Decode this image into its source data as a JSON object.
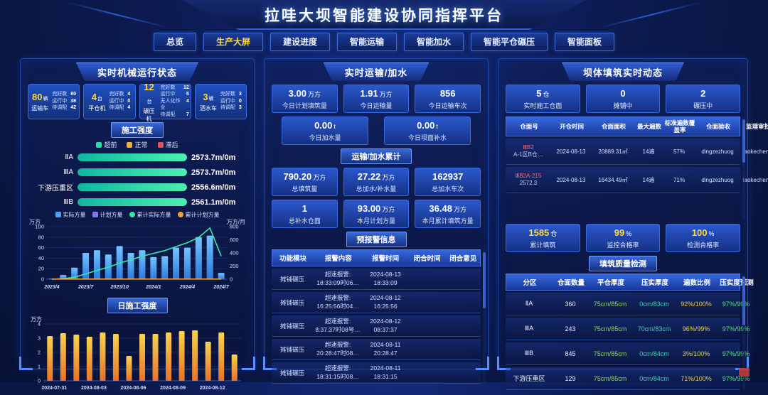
{
  "header": {
    "title": "拉哇大坝智能建设协同指挥平台"
  },
  "nav": {
    "tabs": [
      {
        "label": "总览",
        "active": false
      },
      {
        "label": "生产大屏",
        "active": true
      },
      {
        "label": "建设进度",
        "active": false
      },
      {
        "label": "智能运输",
        "active": false
      },
      {
        "label": "智能加水",
        "active": false
      },
      {
        "label": "智能平仓碾压",
        "active": false
      },
      {
        "label": "智能面板",
        "active": false
      }
    ]
  },
  "colors": {
    "accent_yellow": "#ffd93d",
    "ahead_teal": "#2fd9a8",
    "normal_yellow": "#e8b339",
    "late_red": "#e05555",
    "bar_blue": "#4aa3f0",
    "plan_purple": "#8277f0",
    "cum_green": "#35e8a6",
    "cum_orange": "#f0a23c",
    "alarm_red": "#ff6b6b"
  },
  "left_panel": {
    "title": "实时机械运行状态",
    "machines": [
      {
        "count": "80",
        "unit": "辆",
        "name": "运输车",
        "stats": [
          {
            "label": "完好数",
            "value": "80"
          },
          {
            "label": "运行中",
            "value": "38"
          },
          {
            "label": "待调配",
            "value": "42"
          }
        ]
      },
      {
        "count": "4",
        "unit": "台",
        "name": "平仓机",
        "stats": [
          {
            "label": "完好数",
            "value": "4"
          },
          {
            "label": "运行中",
            "value": "0"
          },
          {
            "label": "待调配",
            "value": "4"
          }
        ]
      },
      {
        "count": "12",
        "unit": "台",
        "name": "碾压机",
        "stats": [
          {
            "label": "完好数",
            "value": "12"
          },
          {
            "label": "运行中",
            "value": "5"
          },
          {
            "label": "无人化作业",
            "value": "4"
          },
          {
            "label": "待调配",
            "value": "7"
          }
        ]
      },
      {
        "count": "3",
        "unit": "辆",
        "name": "洒水车",
        "stats": [
          {
            "label": "完好数",
            "value": "3"
          },
          {
            "label": "运行中",
            "value": "0"
          },
          {
            "label": "待调配",
            "value": "3"
          }
        ]
      }
    ],
    "progress": {
      "badge": "施工强度",
      "legend": [
        {
          "label": "超前",
          "color": "#2fd9a8"
        },
        {
          "label": "正常",
          "color": "#e8b339"
        },
        {
          "label": "滞后",
          "color": "#e05555"
        }
      ],
      "rows": [
        {
          "label": "ⅡA",
          "value": "2573.7m/0m",
          "pct": 100,
          "status": "超前"
        },
        {
          "label": "ⅢA",
          "value": "2573.7m/0m",
          "pct": 100,
          "status": "超前"
        },
        {
          "label": "下游压重区",
          "value": "2556.6m/0m",
          "pct": 100,
          "status": "超前"
        },
        {
          "label": "ⅢB",
          "value": "2561.1m/0m",
          "pct": 100,
          "status": "超前"
        }
      ]
    }
  },
  "center_panel": {
    "title": "实时运输/加水",
    "today_cards": [
      {
        "value": "3.00",
        "unit": "万方",
        "label": "今日计划填筑量"
      },
      {
        "value": "1.91",
        "unit": "万方",
        "label": "今日运输量"
      },
      {
        "value": "856",
        "unit": "",
        "label": "今日运输车次"
      }
    ],
    "today_cards2": [
      {
        "value": "0.00",
        "unit": "t",
        "label": "今日加水量"
      },
      {
        "value": "0.00",
        "unit": "t",
        "label": "今日坝面补水"
      }
    ],
    "cumulative_badge": "运输/加水累计",
    "total_cards": [
      {
        "value": "790.20",
        "unit": "万方",
        "label": "总填筑量"
      },
      {
        "value": "27.22",
        "unit": "万方",
        "label": "总加水/补水量"
      },
      {
        "value": "162937",
        "unit": "",
        "label": "总加水车次"
      }
    ],
    "total_cards2": [
      {
        "value": "1",
        "unit": "",
        "label": "总补水仓面"
      },
      {
        "value": "93.00",
        "unit": "万方",
        "label": "本月计划方量"
      },
      {
        "value": "36.48",
        "unit": "万方",
        "label": "本月累计填筑方量"
      }
    ],
    "alarm_badge": "预报警信息",
    "alarm_table": {
      "headers": [
        "功能模块",
        "报警内容",
        "报警时间",
        "闭合时间",
        "闭合意见"
      ],
      "rows": [
        {
          "module": "摊铺碾压",
          "alarm_line1": "超速报警:",
          "alarm_line2": "18:33:09时06…",
          "time_line1": "2024-08-13",
          "time_line2": "18:33:09",
          "close_time": "",
          "close_opinion": ""
        },
        {
          "module": "摊铺碾压",
          "alarm_line1": "超速报警:",
          "alarm_line2": "16:25:56时04…",
          "time_line1": "2024-08-12",
          "time_line2": "16:25:56",
          "close_time": "",
          "close_opinion": ""
        },
        {
          "module": "摊铺碾压",
          "alarm_line1": "超速报警:",
          "alarm_line2": "8:37:37时08号…",
          "time_line1": "2024-08-12",
          "time_line2": "08:37:37",
          "close_time": "",
          "close_opinion": ""
        },
        {
          "module": "摊铺碾压",
          "alarm_line1": "超速报警:",
          "alarm_line2": "20:28:47时08…",
          "time_line1": "2024-08-11",
          "time_line2": "20:28:47",
          "close_time": "",
          "close_opinion": ""
        },
        {
          "module": "摊铺碾压",
          "alarm_line1": "超速报警:",
          "alarm_line2": "18:31:15时08…",
          "time_line1": "2024-08-11",
          "time_line2": "18:31:15",
          "close_time": "",
          "close_opinion": ""
        }
      ]
    }
  },
  "right_panel": {
    "title": "坝体填筑实时动态",
    "live_cards": [
      {
        "value": "5",
        "unit": "仓",
        "label": "实时施工仓面"
      },
      {
        "value": "0",
        "unit": "",
        "label": "摊铺中"
      },
      {
        "value": "2",
        "unit": "",
        "label": "碾压中"
      }
    ],
    "pour_table": {
      "headers": [
        "仓面号",
        "开仓时间",
        "仓面面积",
        "最大遍数",
        "标准遍数覆盖率",
        "仓面验收",
        "监理审批"
      ],
      "rows": [
        {
          "id_line1": "ⅢB2",
          "id_line2": "A-1区B仓…",
          "open_time": "2024-08-13",
          "area": "20889.31㎡",
          "max_passes": "14遍",
          "coverage": "57%",
          "acceptance": "dingzezhuog",
          "approval": "taokecheng"
        },
        {
          "id_line1": "ⅢB2A-215",
          "id_line2": "2572.3",
          "open_time": "2024-08-13",
          "area": "16434.49㎡",
          "max_passes": "14遍",
          "coverage": "71%",
          "acceptance": "dingzezhuog",
          "approval": "taokecheng"
        }
      ]
    },
    "stat_cards": [
      {
        "value": "1585",
        "unit": "仓",
        "label": "累计填筑"
      },
      {
        "value": "99",
        "unit": "%",
        "label": "监控合格率"
      },
      {
        "value": "100",
        "unit": "%",
        "label": "检测合格率"
      }
    ],
    "quality_badge": "填筑质量检测",
    "quality_table": {
      "headers": [
        "分区",
        "仓面数量",
        "平仓厚度",
        "压实厚度",
        "遍数比例",
        "压实度预测"
      ],
      "value_colors": [
        "#e8f1ff",
        "#e8f1ff",
        "#8fd460",
        "#3fd2b4",
        "#e8cf4a",
        "#58e07c"
      ],
      "rows": [
        [
          "ⅡA",
          "360",
          "75cm/85cm",
          "0cm/83cm",
          "92%/100%",
          "97%/99%"
        ],
        [
          "ⅢA",
          "243",
          "75cm/85cm",
          "70cm/83cm",
          "96%/99%",
          "97%/99%"
        ],
        [
          "ⅢB",
          "845",
          "75cm/85cm",
          "0cm/84cm",
          "3%/100%",
          "97%/99%"
        ],
        [
          "下游压重区",
          "129",
          "75cm/85cm",
          "0cm/84cm",
          "71%/100%",
          "97%/99%"
        ]
      ]
    }
  },
  "chart_data": [
    {
      "id": "monthly_volume",
      "type": "bar",
      "categories": [
        "2023/4",
        "2023/5",
        "2023/6",
        "2023/7",
        "2023/8",
        "2023/9",
        "2023/10",
        "2023/11",
        "2023/12",
        "2024/1",
        "2024/2",
        "2024/3",
        "2024/4",
        "2024/5",
        "2024/6",
        "2024/7"
      ],
      "series": [
        {
          "name": "实际方量",
          "type": "bar",
          "axis": "left",
          "color": "#4aa3f0",
          "values": [
            1,
            8,
            22,
            50,
            55,
            47,
            63,
            50,
            55,
            42,
            44,
            60,
            60,
            80,
            83,
            12
          ]
        },
        {
          "name": "计划方量",
          "type": "bar",
          "axis": "left",
          "color": "#8277f0",
          "values": [
            0,
            0,
            0,
            0,
            0,
            0,
            0,
            0,
            0,
            0,
            0,
            0,
            0,
            0,
            0,
            0
          ]
        },
        {
          "name": "累计实际方量",
          "type": "line",
          "axis": "right",
          "color": "#35e8a6",
          "values": [
            0,
            8,
            30,
            80,
            135,
            182,
            245,
            295,
            350,
            392,
            436,
            496,
            556,
            636,
            780,
            350
          ]
        },
        {
          "name": "累计计划方量",
          "type": "line",
          "axis": "right",
          "color": "#f0a23c",
          "values": [
            2,
            2,
            2,
            2,
            2,
            2,
            2,
            2,
            2,
            2,
            2,
            2,
            2,
            2,
            2,
            2
          ]
        }
      ],
      "ylabel_left": "万方",
      "ylabel_right": "万方/月",
      "ylim_left": [
        0,
        100
      ],
      "ylim_right": [
        0,
        800
      ],
      "yticks_left": [
        0,
        20,
        40,
        60,
        80,
        100
      ],
      "yticks_right": [
        0,
        200,
        400,
        600,
        800
      ],
      "xticks_shown": [
        "2023/4",
        "2023/7",
        "2023/10",
        "2024/1",
        "2024/4",
        "2024/7"
      ],
      "grid": true,
      "legend_position": "top"
    },
    {
      "id": "daily_intensity",
      "type": "bar",
      "title": "日施工强度",
      "categories": [
        "2024-07-31",
        "2024-08-01",
        "2024-08-02",
        "2024-08-03",
        "2024-08-04",
        "2024-08-05",
        "2024-08-06",
        "2024-08-07",
        "2024-08-08",
        "2024-08-09",
        "2024-08-10",
        "2024-08-11",
        "2024-08-12",
        "2024-08-13",
        "2024-08-14"
      ],
      "values": [
        3.15,
        3.35,
        3.25,
        3.1,
        3.4,
        3.3,
        1.75,
        3.3,
        3.3,
        3.4,
        3.5,
        3.55,
        2.75,
        3.4,
        1.85
      ],
      "ylabel": "万方",
      "ylim": [
        0,
        4
      ],
      "yticks": [
        0,
        1,
        2,
        3,
        4
      ],
      "xticks_shown": [
        "2024-07-31",
        "2024-08-03",
        "2024-08-06",
        "2024-08-09",
        "2024-08-12"
      ],
      "bar_color_top": "#f8d44e",
      "bar_color_bottom": "#e8732a",
      "grid": true
    }
  ]
}
